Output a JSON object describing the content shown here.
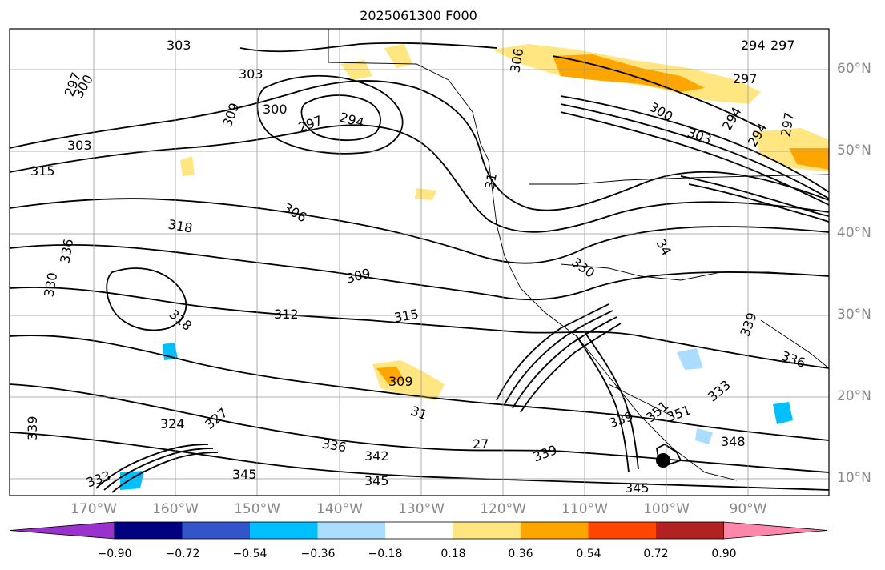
{
  "title": "2025061300 F000",
  "lat_labels": [
    "60°N",
    "50°N",
    "40°N",
    "30°N",
    "20°N",
    "10°N"
  ],
  "lon_labels": [
    "170°W",
    "160°W",
    "150°W",
    "140°W",
    "130°W",
    "120°W",
    "110°W",
    "100°W",
    "90°W"
  ],
  "colorbar": {
    "ticks": [
      "−0.90",
      "−0.72",
      "−0.54",
      "−0.36",
      "−0.18",
      "0.18",
      "0.36",
      "0.54",
      "0.72",
      "0.90"
    ],
    "colors": [
      "#9932cc",
      "#000080",
      "#3355cc",
      "#00bfff",
      "#aaddff",
      "#ffffff",
      "#ffe680",
      "#ffa500",
      "#ff4500",
      "#b22222",
      "#ff88aa"
    ]
  },
  "contour_labels": [
    "303",
    "303",
    "297",
    "300",
    "309",
    "300",
    "297",
    "294",
    "303",
    "315",
    "306",
    "318",
    "336",
    "330",
    "309",
    "312",
    "315",
    "318",
    "309",
    "31",
    "324",
    "327",
    "336",
    "342",
    "27",
    "339",
    "345",
    "345",
    "345",
    "339",
    "333",
    "306",
    "300",
    "303",
    "297",
    "294",
    "294",
    "297",
    "294",
    "297",
    "31",
    "330",
    "34",
    "339",
    "336",
    "351",
    "351",
    "348",
    "339",
    "333"
  ]
}
